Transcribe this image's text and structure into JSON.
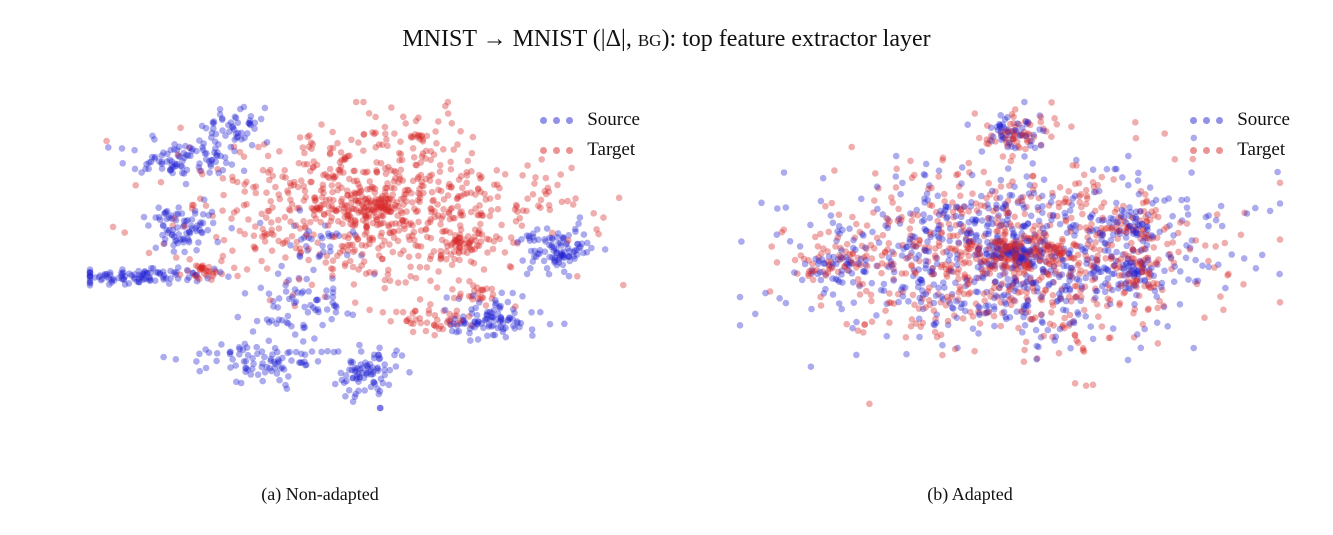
{
  "figure": {
    "title_prefix": "MNIST → MNIST (|Δ|,",
    "title_sc": "bg",
    "title_suffix": "): top feature extractor layer"
  },
  "chart_data": [
    {
      "type": "scatter",
      "caption": "(a) Non-adapted",
      "title": "",
      "xlabel": "",
      "ylabel": "",
      "grid": false,
      "axes_visible": false,
      "legend_position": "top-right",
      "legend": [
        "Source",
        "Target"
      ],
      "xlim": [
        -100,
        100
      ],
      "ylim": [
        -100,
        100
      ],
      "colors": {
        "Source": "#2323d2",
        "Target": "#d72828"
      },
      "clusters": [
        {
          "series": "Target",
          "cx": 5,
          "cy": 30,
          "sx": 32,
          "sy": 26,
          "n": 750
        },
        {
          "series": "Target",
          "cx": 8,
          "cy": 32,
          "sx": 5,
          "sy": 4,
          "n": 60
        },
        {
          "series": "Target",
          "cx": 38,
          "cy": 8,
          "sx": 4,
          "sy": 4,
          "n": 35
        },
        {
          "series": "Target",
          "cx": -58,
          "cy": -10,
          "sx": 3,
          "sy": 3,
          "n": 30
        },
        {
          "series": "Target",
          "cx": 25,
          "cy": -42,
          "sx": 8,
          "sy": 5,
          "n": 45
        },
        {
          "series": "Target",
          "cx": 42,
          "cy": -24,
          "sx": 4,
          "sy": 4,
          "n": 20
        },
        {
          "series": "Target",
          "cx": 22,
          "cy": 77,
          "sx": 2,
          "sy": 1.5,
          "n": 12
        },
        {
          "series": "Source",
          "cx": -86,
          "cy": -14,
          "sx": 15,
          "sy": 3,
          "n": 100
        },
        {
          "series": "Source",
          "cx": -67,
          "cy": 62,
          "sx": 9,
          "sy": 6,
          "n": 80
        },
        {
          "series": "Source",
          "cx": -48,
          "cy": 82,
          "sx": 7,
          "sy": 9,
          "n": 60
        },
        {
          "series": "Source",
          "cx": -65,
          "cy": 18,
          "sx": 7,
          "sy": 8,
          "n": 80
        },
        {
          "series": "Source",
          "cx": -35,
          "cy": -68,
          "sx": 13,
          "sy": 6,
          "n": 90
        },
        {
          "series": "Source",
          "cx": 4,
          "cy": -78,
          "sx": 6,
          "sy": 9,
          "n": 80
        },
        {
          "series": "Source",
          "cx": 48,
          "cy": -42,
          "sx": 8,
          "sy": 7,
          "n": 100
        },
        {
          "series": "Source",
          "cx": 72,
          "cy": 4,
          "sx": 7,
          "sy": 7,
          "n": 100
        },
        {
          "series": "Source",
          "cx": -22,
          "cy": -30,
          "sx": 10,
          "sy": 12,
          "n": 70
        },
        {
          "series": "Source",
          "cx": -15,
          "cy": 8,
          "sx": 8,
          "sy": 8,
          "n": 30
        }
      ]
    },
    {
      "type": "scatter",
      "caption": "(b) Adapted",
      "title": "",
      "xlabel": "",
      "ylabel": "",
      "grid": false,
      "axes_visible": false,
      "legend_position": "top-right",
      "legend": [
        "Source",
        "Target"
      ],
      "xlim": [
        -100,
        100
      ],
      "ylim": [
        -100,
        100
      ],
      "colors": {
        "Source": "#2323d2",
        "Target": "#d72828"
      },
      "clusters": [
        {
          "series": "Target",
          "cx": 0,
          "cy": 0,
          "sx": 36,
          "sy": 30,
          "n": 650
        },
        {
          "series": "Target",
          "cx": 2,
          "cy": 2,
          "sx": 12,
          "sy": 6,
          "n": 150
        },
        {
          "series": "Target",
          "cx": 2,
          "cy": 80,
          "sx": 6,
          "sy": 6,
          "n": 50
        },
        {
          "series": "Target",
          "cx": 47,
          "cy": 20,
          "sx": 6,
          "sy": 6,
          "n": 40
        },
        {
          "series": "Target",
          "cx": -65,
          "cy": -8,
          "sx": 8,
          "sy": 6,
          "n": 40
        },
        {
          "series": "Target",
          "cx": 45,
          "cy": -10,
          "sx": 8,
          "sy": 6,
          "n": 40
        },
        {
          "series": "Source",
          "cx": 0,
          "cy": 0,
          "sx": 36,
          "sy": 30,
          "n": 680
        },
        {
          "series": "Source",
          "cx": 2,
          "cy": 0,
          "sx": 6,
          "sy": 4,
          "n": 60
        },
        {
          "series": "Source",
          "cx": 2,
          "cy": 80,
          "sx": 6,
          "sy": 6,
          "n": 50
        },
        {
          "series": "Source",
          "cx": 47,
          "cy": 20,
          "sx": 6,
          "sy": 6,
          "n": 40
        },
        {
          "series": "Source",
          "cx": -65,
          "cy": -8,
          "sx": 8,
          "sy": 6,
          "n": 40
        },
        {
          "series": "Source",
          "cx": 45,
          "cy": -10,
          "sx": 8,
          "sy": 6,
          "n": 40
        }
      ]
    }
  ]
}
